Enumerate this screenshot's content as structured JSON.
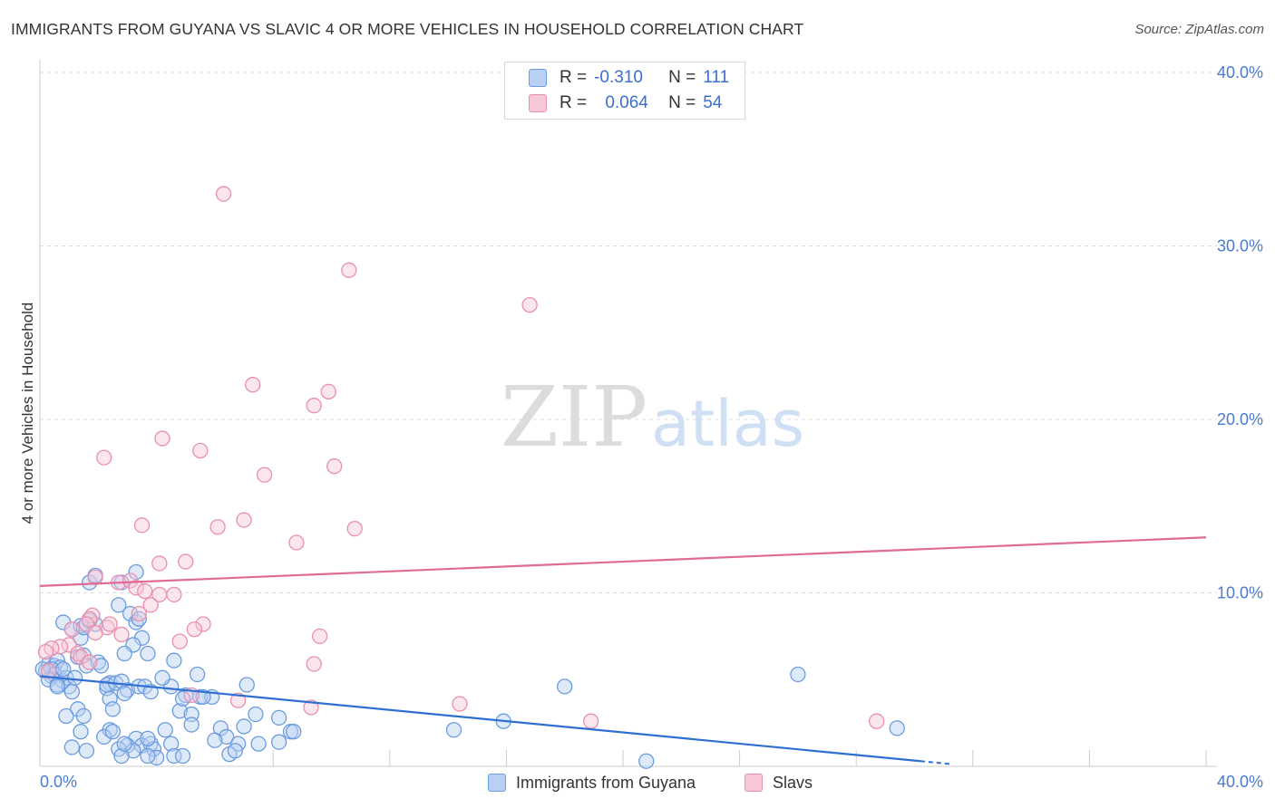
{
  "title": "IMMIGRANTS FROM GUYANA VS SLAVIC 4 OR MORE VEHICLES IN HOUSEHOLD CORRELATION CHART",
  "source": "Source: ZipAtlas.com",
  "watermark": {
    "zip": "ZIP",
    "atlas": "atlas"
  },
  "colors": {
    "blue_fill": "#b8d0f2",
    "blue_stroke": "#6b9be0",
    "blue_line": "#2e6fd4",
    "pink_fill": "#f8c8d8",
    "pink_stroke": "#e890ad",
    "pink_line": "#e06b93",
    "grid": "#dddddd",
    "tick_text": "#4a7bd0"
  },
  "legend": {
    "rows": [
      {
        "r_label": "R =",
        "r_value": "-0.310",
        "n_label": "N =",
        "n_value": "111"
      },
      {
        "r_label": "R =",
        "r_value": "0.064",
        "n_label": "N =",
        "n_value": "54"
      }
    ]
  },
  "chart_data": {
    "type": "scatter",
    "title": "IMMIGRANTS FROM GUYANA VS SLAVIC 4 OR MORE VEHICLES IN HOUSEHOLD CORRELATION CHART",
    "xlabel": "",
    "ylabel": "4 or more Vehicles in Household",
    "xlim": [
      0,
      40
    ],
    "ylim": [
      0,
      40
    ],
    "x_tick_labels": [
      "0.0%",
      "40.0%"
    ],
    "y_ticks": [
      10,
      20,
      30,
      40
    ],
    "y_tick_labels": [
      "10.0%",
      "20.0%",
      "30.0%",
      "40.0%"
    ],
    "grid": true,
    "series": [
      {
        "name": "Immigrants from Guyana",
        "R": -0.31,
        "N": 111,
        "trend": {
          "x": [
            0,
            30.2
          ],
          "y": [
            5.2,
            0.3
          ],
          "dashed_to_x": 31.2
        },
        "points": [
          [
            0.2,
            5.5
          ],
          [
            0.3,
            5.9
          ],
          [
            0.4,
            5.2
          ],
          [
            0.5,
            5.8
          ],
          [
            0.6,
            6.1
          ],
          [
            0.7,
            5.7
          ],
          [
            0.4,
            5.6
          ],
          [
            0.5,
            5.3
          ],
          [
            0.8,
            4.9
          ],
          [
            0.9,
            5.1
          ],
          [
            0.3,
            5.0
          ],
          [
            0.6,
            4.7
          ],
          [
            0.8,
            5.6
          ],
          [
            1.0,
            4.6
          ],
          [
            1.1,
            4.3
          ],
          [
            1.2,
            5.1
          ],
          [
            1.3,
            6.3
          ],
          [
            1.4,
            7.4
          ],
          [
            1.5,
            6.4
          ],
          [
            1.6,
            5.8
          ],
          [
            0.8,
            8.3
          ],
          [
            1.1,
            7.9
          ],
          [
            1.4,
            8.1
          ],
          [
            1.5,
            8.0
          ],
          [
            1.7,
            8.4
          ],
          [
            1.9,
            8.2
          ],
          [
            2.0,
            6.0
          ],
          [
            2.1,
            5.8
          ],
          [
            1.7,
            10.6
          ],
          [
            1.9,
            11.0
          ],
          [
            2.8,
            10.6
          ],
          [
            3.3,
            11.2
          ],
          [
            2.7,
            9.3
          ],
          [
            3.1,
            8.8
          ],
          [
            3.3,
            8.3
          ],
          [
            3.4,
            8.5
          ],
          [
            3.5,
            7.4
          ],
          [
            3.2,
            7.0
          ],
          [
            2.9,
            6.5
          ],
          [
            3.7,
            6.5
          ],
          [
            4.6,
            6.1
          ],
          [
            2.4,
            4.8
          ],
          [
            2.3,
            4.5
          ],
          [
            2.4,
            3.9
          ],
          [
            3.0,
            4.4
          ],
          [
            3.4,
            4.6
          ],
          [
            3.6,
            4.6
          ],
          [
            4.5,
            4.6
          ],
          [
            5.0,
            4.1
          ],
          [
            5.5,
            4.0
          ],
          [
            5.9,
            4.0
          ],
          [
            4.8,
            3.2
          ],
          [
            5.2,
            3.0
          ],
          [
            2.3,
            4.7
          ],
          [
            2.6,
            4.8
          ],
          [
            2.8,
            4.9
          ],
          [
            2.5,
            3.3
          ],
          [
            1.3,
            3.3
          ],
          [
            1.5,
            2.9
          ],
          [
            0.9,
            2.9
          ],
          [
            1.4,
            2.0
          ],
          [
            2.4,
            2.1
          ],
          [
            2.2,
            1.7
          ],
          [
            3.3,
            1.6
          ],
          [
            3.0,
            1.2
          ],
          [
            3.5,
            1.2
          ],
          [
            3.8,
            1.3
          ],
          [
            3.9,
            1.0
          ],
          [
            4.3,
            2.1
          ],
          [
            4.5,
            1.3
          ],
          [
            4.6,
            0.6
          ],
          [
            4.9,
            0.6
          ],
          [
            4.0,
            0.5
          ],
          [
            3.2,
            0.9
          ],
          [
            2.7,
            1.0
          ],
          [
            2.8,
            0.6
          ],
          [
            1.6,
            0.9
          ],
          [
            2.9,
            1.3
          ],
          [
            3.7,
            0.6
          ],
          [
            1.1,
            1.1
          ],
          [
            5.4,
            5.3
          ],
          [
            5.6,
            4.0
          ],
          [
            6.2,
            2.2
          ],
          [
            6.4,
            1.7
          ],
          [
            6.8,
            1.3
          ],
          [
            7.0,
            2.3
          ],
          [
            7.4,
            3.0
          ],
          [
            8.2,
            2.8
          ],
          [
            8.6,
            2.0
          ],
          [
            8.7,
            2.0
          ],
          [
            7.1,
            4.7
          ],
          [
            6.0,
            1.5
          ],
          [
            6.5,
            0.7
          ],
          [
            5.2,
            2.4
          ],
          [
            8.2,
            1.4
          ],
          [
            7.5,
            1.3
          ],
          [
            6.7,
            0.9
          ],
          [
            4.2,
            5.1
          ],
          [
            3.8,
            4.3
          ],
          [
            4.9,
            3.9
          ],
          [
            14.2,
            2.1
          ],
          [
            15.9,
            2.6
          ],
          [
            18.0,
            4.6
          ],
          [
            26.0,
            5.3
          ],
          [
            29.4,
            2.2
          ],
          [
            20.8,
            0.3
          ],
          [
            2.9,
            4.2
          ],
          [
            3.7,
            1.6
          ],
          [
            2.5,
            2.0
          ],
          [
            0.6,
            4.6
          ],
          [
            0.1,
            5.6
          ]
        ]
      },
      {
        "name": "Slavs",
        "R": 0.064,
        "N": 54,
        "trend": {
          "x": [
            0,
            40
          ],
          "y": [
            10.4,
            13.2
          ]
        },
        "points": [
          [
            6.3,
            33.0
          ],
          [
            10.6,
            28.6
          ],
          [
            16.8,
            26.6
          ],
          [
            7.3,
            22.0
          ],
          [
            9.9,
            21.6
          ],
          [
            9.4,
            20.8
          ],
          [
            4.2,
            18.9
          ],
          [
            5.5,
            18.2
          ],
          [
            2.2,
            17.8
          ],
          [
            10.1,
            17.3
          ],
          [
            7.7,
            16.8
          ],
          [
            7.0,
            14.2
          ],
          [
            6.1,
            13.8
          ],
          [
            3.5,
            13.9
          ],
          [
            10.8,
            13.7
          ],
          [
            8.8,
            12.9
          ],
          [
            4.1,
            11.7
          ],
          [
            5.0,
            11.8
          ],
          [
            2.7,
            10.6
          ],
          [
            3.1,
            10.7
          ],
          [
            3.3,
            10.3
          ],
          [
            3.6,
            10.1
          ],
          [
            1.9,
            10.9
          ],
          [
            4.6,
            9.9
          ],
          [
            4.1,
            9.9
          ],
          [
            3.8,
            9.3
          ],
          [
            1.8,
            8.7
          ],
          [
            1.7,
            8.5
          ],
          [
            1.6,
            8.2
          ],
          [
            2.3,
            8.0
          ],
          [
            2.4,
            8.2
          ],
          [
            3.4,
            8.8
          ],
          [
            5.6,
            8.2
          ],
          [
            5.3,
            7.9
          ],
          [
            2.8,
            7.6
          ],
          [
            1.9,
            7.7
          ],
          [
            1.1,
            7.9
          ],
          [
            4.8,
            7.2
          ],
          [
            9.6,
            7.5
          ],
          [
            1.0,
            7.0
          ],
          [
            0.7,
            6.9
          ],
          [
            0.4,
            6.8
          ],
          [
            0.2,
            6.6
          ],
          [
            1.3,
            6.5
          ],
          [
            1.4,
            6.3
          ],
          [
            1.7,
            6.0
          ],
          [
            9.4,
            5.9
          ],
          [
            0.3,
            5.5
          ],
          [
            5.2,
            4.1
          ],
          [
            6.8,
            3.8
          ],
          [
            28.7,
            2.6
          ],
          [
            18.9,
            2.6
          ],
          [
            14.4,
            3.6
          ],
          [
            9.3,
            3.4
          ]
        ]
      }
    ]
  },
  "bottom_legend": [
    {
      "label": "Immigrants from Guyana"
    },
    {
      "label": "Slavs"
    }
  ]
}
